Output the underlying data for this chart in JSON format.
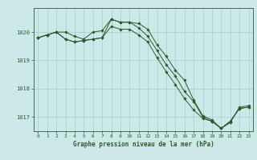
{
  "title": "Graphe pression niveau de la mer (hPa)",
  "background_color": "#cde8e8",
  "grid_color": "#aacccc",
  "line_color": "#2d5a2d",
  "marker_color": "#2d5a2d",
  "xlim": [
    -0.5,
    23.5
  ],
  "ylim": [
    1016.5,
    1020.85
  ],
  "yticks": [
    1017,
    1018,
    1019,
    1020
  ],
  "xticks": [
    0,
    1,
    2,
    3,
    4,
    5,
    6,
    7,
    8,
    9,
    10,
    11,
    12,
    13,
    14,
    15,
    16,
    17,
    18,
    19,
    20,
    21,
    22,
    23
  ],
  "series1": {
    "x": [
      0,
      1,
      2,
      3,
      4,
      5,
      6,
      7,
      8,
      9,
      10,
      11,
      12,
      13,
      14,
      15,
      16,
      17,
      18,
      19,
      20,
      21,
      22,
      23
    ],
    "y": [
      1019.8,
      1019.9,
      1020.0,
      1020.0,
      1019.85,
      1019.75,
      1020.0,
      1020.05,
      1020.45,
      1020.35,
      1020.35,
      1020.3,
      1020.1,
      1019.55,
      1019.15,
      1018.65,
      1018.3,
      1017.6,
      1017.05,
      1016.9,
      1016.6,
      1016.8,
      1017.35,
      1017.4
    ]
  },
  "series2": {
    "x": [
      0,
      1,
      2,
      3,
      4,
      5,
      6,
      7,
      8,
      9,
      10,
      11,
      12,
      13,
      14,
      15,
      16,
      17,
      18,
      19,
      20,
      21,
      22,
      23
    ],
    "y": [
      1019.8,
      1019.9,
      1020.0,
      1019.75,
      1019.65,
      1019.7,
      1019.75,
      1019.8,
      1020.45,
      1020.35,
      1020.35,
      1020.15,
      1019.85,
      1019.35,
      1018.85,
      1018.45,
      1017.9,
      1017.55,
      1017.0,
      1016.85,
      1016.6,
      1016.85,
      1017.3,
      1017.35
    ]
  },
  "series3": {
    "x": [
      0,
      1,
      2,
      3,
      4,
      5,
      6,
      7,
      8,
      9,
      10,
      11,
      12,
      13,
      14,
      15,
      16,
      17,
      18,
      19,
      20,
      21,
      22,
      23
    ],
    "y": [
      1019.8,
      1019.9,
      1020.0,
      1019.75,
      1019.65,
      1019.7,
      1019.75,
      1019.8,
      1020.2,
      1020.1,
      1020.1,
      1019.9,
      1019.65,
      1019.1,
      1018.6,
      1018.15,
      1017.65,
      1017.25,
      1016.95,
      1016.85,
      1016.6,
      1016.85,
      1017.3,
      1017.35
    ]
  }
}
